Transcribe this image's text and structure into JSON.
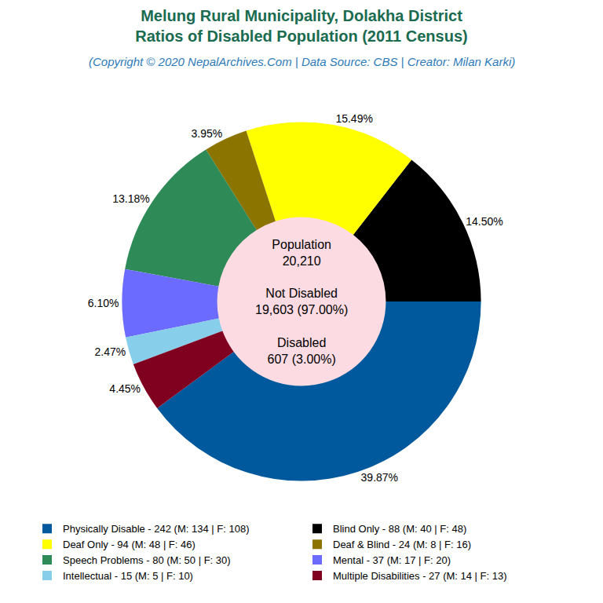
{
  "chart_data": {
    "type": "pie",
    "title": [
      "Melung Rural Municipality, Dolakha District",
      "Ratios of Disabled Population (2011 Census)"
    ],
    "subtitle": "(Copyright © 2020 NepalArchives.Com | Data Source: CBS | Creator: Milan Karki)",
    "categories": [
      "Physically Disable - 242 (M: 134 | F: 108)",
      "Blind Only - 88 (M: 40 | F: 48)",
      "Deaf Only - 94 (M: 48 | F: 46)",
      "Deaf & Blind - 24 (M: 8 | F: 16)",
      "Speech Problems - 80 (M: 50 | F: 30)",
      "Mental - 37 (M: 17 | F: 20)",
      "Intellectual - 15 (M: 5 | F: 10)",
      "Multiple Disabilities - 27 (M: 14 | F: 13)"
    ],
    "values": [
      39.87,
      14.5,
      15.49,
      3.95,
      13.18,
      6.1,
      2.47,
      4.45
    ],
    "value_labels": [
      "39.87%",
      "14.50%",
      "15.49%",
      "3.95%",
      "13.18%",
      "6.10%",
      "2.47%",
      "4.45%"
    ],
    "colors": [
      "#00599c",
      "#000000",
      "#ffff00",
      "#8c7400",
      "#2e8b57",
      "#6b6bff",
      "#87ceeb",
      "#800020"
    ],
    "annotations": [
      [
        "Population",
        "20,210"
      ],
      [
        "Not Disabled",
        "19,603 (97.00%)"
      ],
      [
        "Disabled",
        "607 (3.00%)"
      ]
    ],
    "legend": "bottom",
    "data_labels": true
  }
}
